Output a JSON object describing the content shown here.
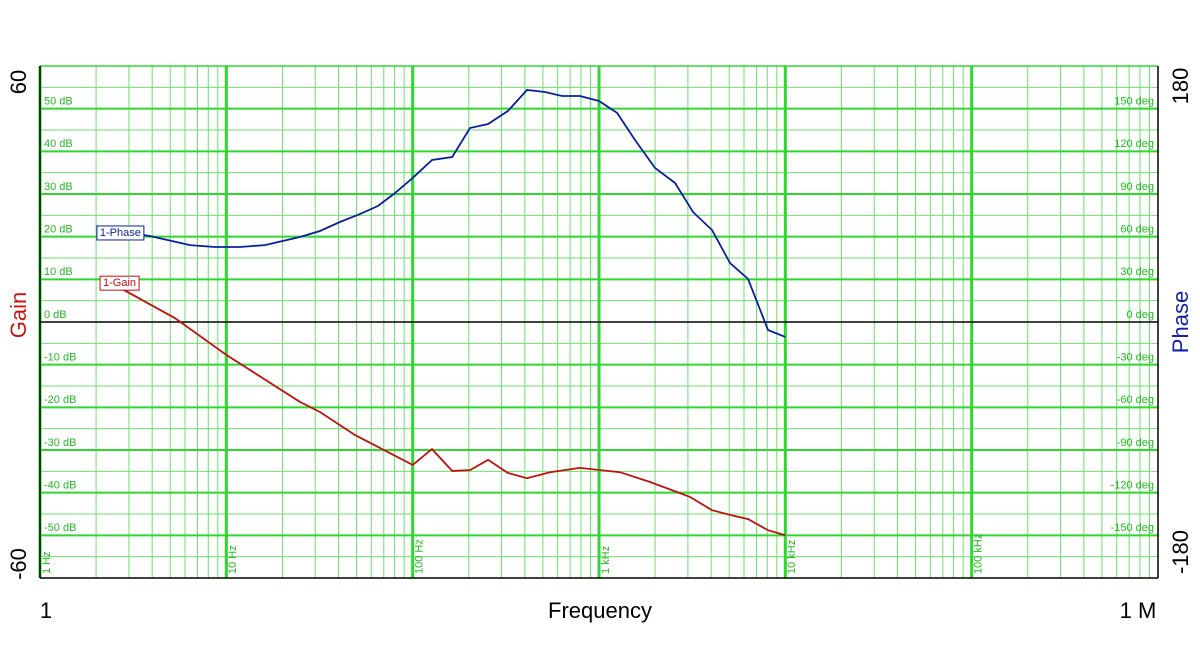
{
  "chart_data": {
    "type": "line",
    "x_label": "Frequency",
    "y_label": "Gain",
    "y2_label": "Phase",
    "xscale": "log",
    "grid": true,
    "xlim": [
      1,
      1000000
    ],
    "xlim_ticks": [
      1,
      {
        "value": 1000000,
        "label": "1 M"
      }
    ],
    "xticks": [
      {
        "value": 1,
        "label": "1 Hz"
      },
      {
        "value": 10,
        "label": "10 Hz"
      },
      {
        "value": 100,
        "label": "100 Hz"
      },
      {
        "value": 1000,
        "label": "1 kHz"
      },
      {
        "value": 10000,
        "label": "10 kHz"
      },
      {
        "value": 100000,
        "label": "100 kHz"
      }
    ],
    "ylim": [
      -60,
      60
    ],
    "yticks": [
      {
        "value": -50,
        "label": "-50 dB"
      },
      {
        "value": -40,
        "label": "-40 dB"
      },
      {
        "value": -30,
        "label": "-30 dB"
      },
      {
        "value": -20,
        "label": "-20 dB"
      },
      {
        "value": -10,
        "label": "-10 dB"
      },
      {
        "value": 0,
        "label": "0 dB"
      },
      {
        "value": 10,
        "label": "10 dB"
      },
      {
        "value": 20,
        "label": "20 dB"
      },
      {
        "value": 30,
        "label": "30 dB"
      },
      {
        "value": 40,
        "label": "40 dB"
      },
      {
        "value": 50,
        "label": "50 dB"
      }
    ],
    "y2lim": [
      -180,
      180
    ],
    "y2ticks": [
      {
        "value": -150,
        "label": "-150 deg"
      },
      {
        "value": -120,
        "label": "-120 deg"
      },
      {
        "value": -90,
        "label": "-90 deg"
      },
      {
        "value": -60,
        "label": "-60 deg"
      },
      {
        "value": -30,
        "label": "-30 deg"
      },
      {
        "value": 0,
        "label": "0 deg"
      },
      {
        "value": 30,
        "label": "30 deg"
      },
      {
        "value": 60,
        "label": "60 deg"
      },
      {
        "value": 90,
        "label": "90 deg"
      },
      {
        "value": 120,
        "label": "120 deg"
      },
      {
        "value": 150,
        "label": "150 deg"
      }
    ],
    "series": [
      {
        "name": "1-Phase",
        "color": "#0a1fa0",
        "axis": "y2",
        "x": [
          2.02,
          2.53,
          3.04,
          3.89,
          6.38,
          8.69,
          11.8,
          16.1,
          24.8,
          31.8,
          40.7,
          52.1,
          65.2,
          80.4,
          100,
          127,
          163,
          203,
          254,
          325,
          411,
          513,
          633,
          791,
          1000,
          1250,
          1560,
          2000,
          2560,
          3200,
          4040,
          5050,
          6310,
          8070,
          10000
        ],
        "values": [
          62.6,
          64.0,
          62.6,
          60.5,
          54.1,
          52.7,
          52.7,
          54.1,
          59.8,
          64.0,
          70.3,
          75.9,
          81.6,
          90.7,
          101.3,
          113.9,
          116.0,
          136.4,
          139.2,
          148.4,
          163.1,
          161.7,
          158.9,
          158.9,
          155.4,
          147.0,
          128.0,
          108.3,
          97.7,
          77.3,
          64.7,
          41.5,
          30.2,
          -5.6,
          -10.5
        ]
      },
      {
        "name": "1-Gain",
        "color": "#c01010",
        "x": [
          2.1,
          2.69,
          5.3,
          10,
          24.8,
          31.8,
          49.1,
          100,
          127,
          163,
          203,
          254,
          325,
          411,
          546,
          791,
          1297,
          1880,
          3080,
          4040,
          5050,
          6310,
          8070,
          10000
        ],
        "values": [
          9.1,
          8.0,
          0.9,
          -7.7,
          -18.7,
          -21.1,
          -26.5,
          -33.5,
          -29.8,
          -34.9,
          -34.7,
          -32.3,
          -35.4,
          -36.6,
          -35.2,
          -34.2,
          -35.2,
          -37.5,
          -41.0,
          -44.1,
          -45.2,
          -46.2,
          -48.8,
          -50.0
        ]
      }
    ]
  }
}
